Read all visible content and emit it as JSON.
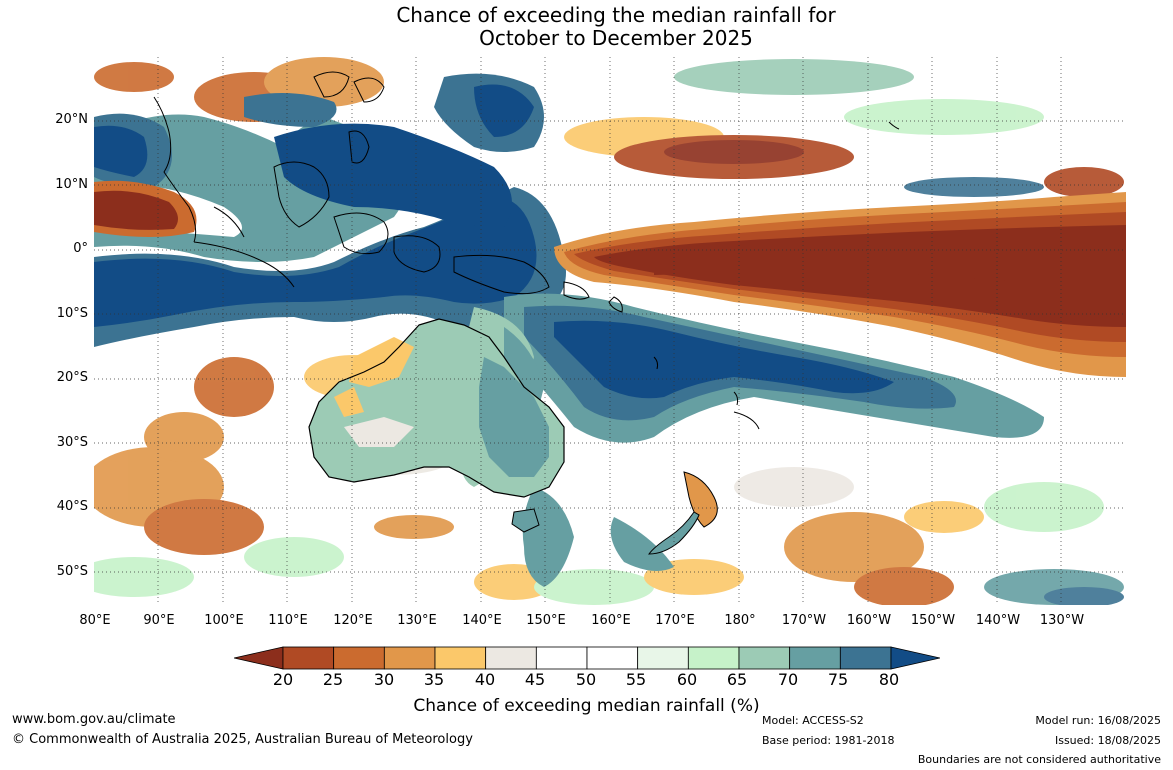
{
  "title": {
    "line1": "Chance of exceeding the median rainfall for",
    "line2": "October to December 2025"
  },
  "map": {
    "lat_labels": [
      "20°N",
      "10°N",
      "0°",
      "10°S",
      "20°S",
      "30°S",
      "40°S",
      "50°S"
    ],
    "lon_labels": [
      "80°E",
      "90°E",
      "100°E",
      "110°E",
      "120°E",
      "130°E",
      "140°E",
      "150°E",
      "160°E",
      "170°E",
      "180°",
      "170°W",
      "160°W",
      "150°W",
      "140°W",
      "130°W"
    ]
  },
  "legend": {
    "ticks": [
      "20",
      "25",
      "30",
      "35",
      "40",
      "45",
      "50",
      "55",
      "60",
      "65",
      "70",
      "75",
      "80"
    ],
    "colors": [
      "#8c2e1c",
      "#b04a24",
      "#cb6b2f",
      "#e1974a",
      "#fbc86a",
      "#ece8e2",
      "#ffffff",
      "#ffffff",
      "#e8f6e8",
      "#c6f2c9",
      "#9ccbb5",
      "#669fa2",
      "#3c7392",
      "#124c86"
    ],
    "label": "Chance of exceeding median rainfall (%)"
  },
  "footer": {
    "website": "www.bom.gov.au/climate",
    "copyright": "© Commonwealth of Australia 2025, Australian Bureau of Meteorology",
    "model": "Model: ACCESS-S2",
    "base_period": "Base period: 1981-2018",
    "model_run": "Model run: 16/08/2025",
    "issued": "Issued: 18/08/2025",
    "disclaimer": "Boundaries are not considered authoritative"
  }
}
